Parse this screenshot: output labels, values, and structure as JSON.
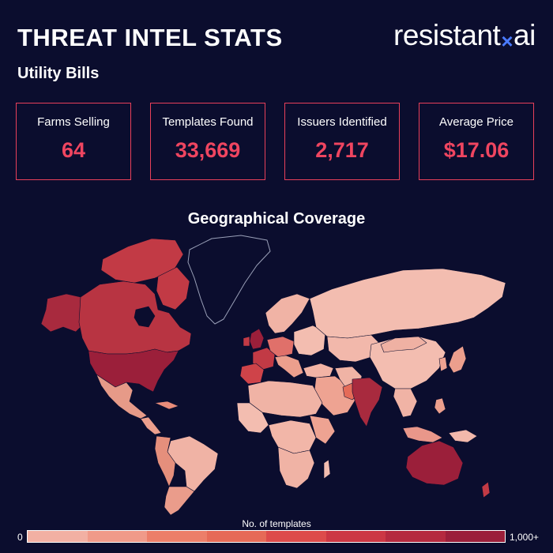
{
  "header": {
    "title": "THREAT INTEL STATS",
    "subtitle": "Utility Bills",
    "logo_left": "resistant",
    "logo_mark": "×",
    "logo_right": "ai"
  },
  "stats": [
    {
      "label": "Farms Selling",
      "value": "64"
    },
    {
      "label": "Templates Found",
      "value": "33,669"
    },
    {
      "label": "Issuers Identified",
      "value": "2,717"
    },
    {
      "label": "Average Price",
      "value": "$17.06"
    }
  ],
  "map": {
    "title": "Geographical Coverage",
    "legend_title": "No. of templates",
    "legend_min": "0",
    "legend_max": "1,000+",
    "legend_colors": [
      "#f2b0a3",
      "#f09a89",
      "#ec7e69",
      "#e66a57",
      "#dd4b4b",
      "#cc3744",
      "#b52a3f",
      "#9b1f3a"
    ]
  },
  "colors": {
    "background": "#0b0d2e",
    "accent": "#ef4560",
    "border": "#e8405a"
  }
}
